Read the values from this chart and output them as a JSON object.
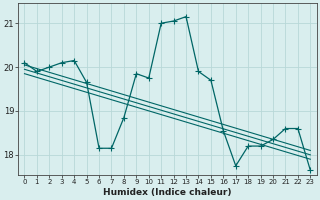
{
  "title": "",
  "xlabel": "Humidex (Indice chaleur)",
  "ylabel": "",
  "background_color": "#d9eeee",
  "grid_color": "#c0dede",
  "line_color": "#006666",
  "xlim": [
    -0.5,
    23.5
  ],
  "ylim": [
    17.55,
    21.45
  ],
  "yticks": [
    18,
    19,
    20,
    21
  ],
  "xticks": [
    0,
    1,
    2,
    3,
    4,
    5,
    6,
    7,
    8,
    9,
    10,
    11,
    12,
    13,
    14,
    15,
    16,
    17,
    18,
    19,
    20,
    21,
    22,
    23
  ],
  "main_x": [
    0,
    1,
    2,
    3,
    4,
    5,
    6,
    7,
    8,
    9,
    10,
    11,
    12,
    13,
    14,
    15,
    16,
    17,
    18,
    19,
    20,
    21,
    22,
    23
  ],
  "main_y": [
    20.1,
    19.9,
    20.0,
    20.1,
    20.15,
    19.65,
    18.15,
    18.15,
    18.85,
    19.85,
    19.75,
    21.0,
    21.05,
    21.15,
    19.9,
    19.7,
    18.55,
    17.75,
    18.2,
    18.2,
    18.35,
    18.6,
    18.6,
    17.65
  ],
  "trend_lines": [
    {
      "x0": 0,
      "y0": 20.05,
      "x1": 23,
      "y1": 18.1
    },
    {
      "x0": 0,
      "y0": 19.95,
      "x1": 23,
      "y1": 18.0
    },
    {
      "x0": 0,
      "y0": 19.85,
      "x1": 23,
      "y1": 17.9
    }
  ]
}
